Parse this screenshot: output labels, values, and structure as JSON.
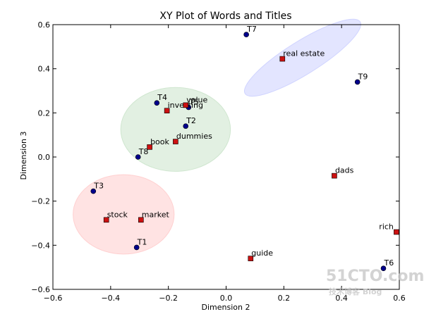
{
  "chart_data": {
    "type": "scatter",
    "title": "XY Plot of Words and Titles",
    "xlabel": "Dimension 2",
    "ylabel": "Dimension 3",
    "xlim": [
      -0.6,
      0.6
    ],
    "ylim": [
      -0.6,
      0.6
    ],
    "xticks": [
      -0.6,
      -0.4,
      -0.2,
      0.0,
      0.2,
      0.4,
      0.6
    ],
    "yticks": [
      -0.6,
      -0.4,
      -0.2,
      0.0,
      0.2,
      0.4,
      0.6
    ],
    "xtick_labels": [
      "−0.6",
      "−0.4",
      "−0.2",
      "0.0",
      "0.2",
      "0.4",
      "0.6"
    ],
    "ytick_labels": [
      "−0.6",
      "−0.4",
      "−0.2",
      "0.0",
      "0.2",
      "0.4",
      "0.6"
    ],
    "grid": false,
    "series": [
      {
        "marker": "circle",
        "color": "#00008b",
        "points": [
          {
            "label": "T1",
            "x": -0.31,
            "y": -0.41
          },
          {
            "label": "T2",
            "x": -0.14,
            "y": 0.14
          },
          {
            "label": "T3",
            "x": -0.46,
            "y": -0.155
          },
          {
            "label": "T4",
            "x": -0.24,
            "y": 0.245
          },
          {
            "label": "T5",
            "x": -0.13,
            "y": 0.225
          },
          {
            "label": "T6",
            "x": 0.545,
            "y": -0.505
          },
          {
            "label": "T7",
            "x": 0.07,
            "y": 0.555
          },
          {
            "label": "T8",
            "x": -0.305,
            "y": 0.0
          },
          {
            "label": "T9",
            "x": 0.455,
            "y": 0.34
          }
        ]
      },
      {
        "marker": "square",
        "color": "#cc1111",
        "points": [
          {
            "label": "book",
            "x": -0.265,
            "y": 0.045
          },
          {
            "label": "dads",
            "x": 0.375,
            "y": -0.085
          },
          {
            "label": "dummies",
            "x": -0.175,
            "y": 0.07
          },
          {
            "label": "guide",
            "x": 0.085,
            "y": -0.46
          },
          {
            "label": "investing",
            "x": -0.205,
            "y": 0.21
          },
          {
            "label": "market",
            "x": -0.295,
            "y": -0.285
          },
          {
            "label": "real estate",
            "x": 0.195,
            "y": 0.445
          },
          {
            "label": "rich",
            "x": 0.59,
            "y": -0.34
          },
          {
            "label": "stock",
            "x": -0.415,
            "y": -0.285
          },
          {
            "label": "value",
            "x": -0.14,
            "y": 0.235
          }
        ]
      }
    ],
    "ellipses": [
      {
        "cx": -0.175,
        "cy": 0.125,
        "rx": 0.19,
        "ry": 0.19,
        "angle": 0,
        "color": "#cfe6cf"
      },
      {
        "cx": -0.355,
        "cy": -0.26,
        "rx": 0.175,
        "ry": 0.18,
        "angle": 0,
        "color": "#ffd0d0"
      },
      {
        "cx": 0.265,
        "cy": 0.45,
        "rx": 0.235,
        "ry": 0.075,
        "angle": -32,
        "color": "#d0d4ff"
      }
    ]
  },
  "watermark": {
    "main": "51CTO.com",
    "sub": "技术博客  Blog"
  }
}
